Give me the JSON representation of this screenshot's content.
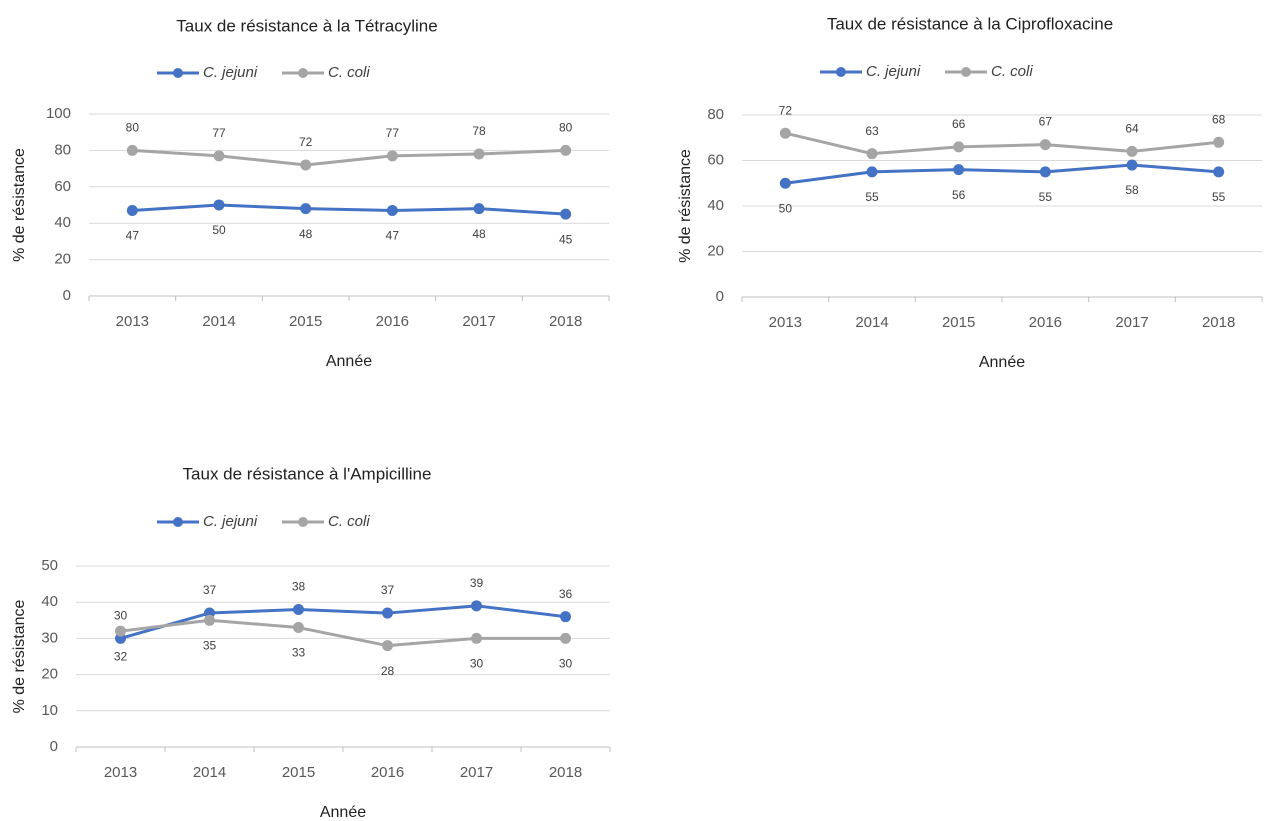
{
  "chart_data": [
    {
      "type": "line",
      "title": "Taux de résistance à la Tétracyline",
      "xlabel": "Année",
      "ylabel": "% de résistance",
      "categories": [
        "2013",
        "2014",
        "2015",
        "2016",
        "2017",
        "2018"
      ],
      "series": [
        {
          "name": "C. jejuni",
          "color": "#4472c4",
          "values": [
            47,
            50,
            48,
            47,
            48,
            45
          ],
          "label_position": "below"
        },
        {
          "name": "C. coli",
          "color": "#a5a5a5",
          "values": [
            80,
            77,
            72,
            77,
            78,
            80
          ],
          "label_position": "above"
        }
      ],
      "ylim": [
        0,
        100
      ],
      "yticks": [
        0,
        20,
        40,
        60,
        80,
        100
      ],
      "grid": true,
      "legend": "top"
    },
    {
      "type": "line",
      "title": "Taux de résistance à la Ciprofloxacine",
      "xlabel": "Année",
      "ylabel": "% de résistance",
      "categories": [
        "2013",
        "2014",
        "2015",
        "2016",
        "2017",
        "2018"
      ],
      "series": [
        {
          "name": "C. jejuni",
          "color": "#4472c4",
          "values": [
            50,
            55,
            56,
            55,
            58,
            55
          ],
          "label_position": "below"
        },
        {
          "name": "C. coli",
          "color": "#a5a5a5",
          "values": [
            72,
            63,
            66,
            67,
            64,
            68
          ],
          "label_position": "above"
        }
      ],
      "ylim": [
        0,
        80
      ],
      "yticks": [
        0,
        20,
        40,
        60,
        80
      ],
      "grid": true,
      "legend": "top"
    },
    {
      "type": "line",
      "title": "Taux de résistance à l'Ampicilline",
      "xlabel": "Année",
      "ylabel": "% de résistance",
      "categories": [
        "2013",
        "2014",
        "2015",
        "2016",
        "2017",
        "2018"
      ],
      "series": [
        {
          "name": "C. jejuni",
          "color": "#4472c4",
          "values": [
            30,
            37,
            38,
            37,
            39,
            36
          ],
          "label_position": "above"
        },
        {
          "name": "C. coli",
          "color": "#a5a5a5",
          "values": [
            32,
            35,
            33,
            28,
            30,
            30
          ],
          "label_position": "below"
        }
      ],
      "ylim": [
        0,
        50
      ],
      "yticks": [
        0,
        10,
        20,
        30,
        40,
        50
      ],
      "grid": true,
      "legend": "top"
    }
  ]
}
